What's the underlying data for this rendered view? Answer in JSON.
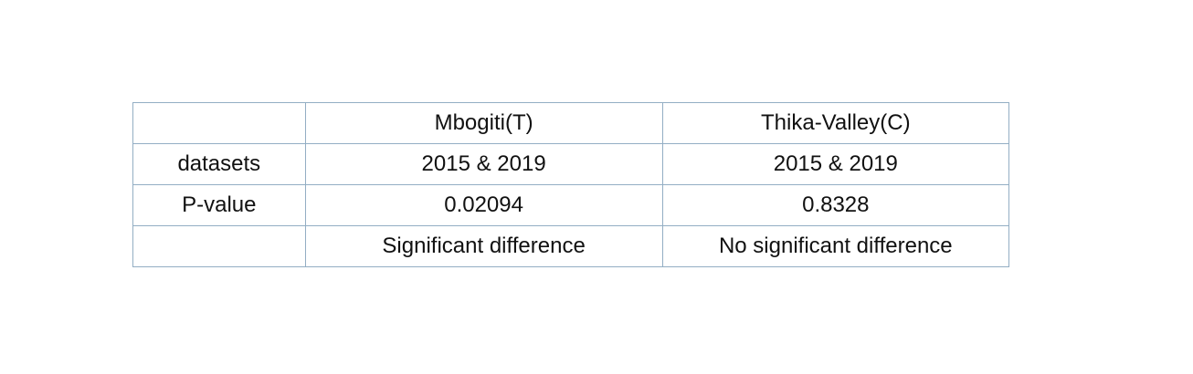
{
  "table": {
    "header": [
      "",
      "Mbogiti(T)",
      "Thika-Valley(C)"
    ],
    "rows": [
      [
        "datasets",
        "2015 & 2019",
        "2015 & 2019"
      ],
      [
        "P-value",
        "0.02094",
        "0.8328"
      ],
      [
        "",
        "Significant difference",
        "No significant difference"
      ]
    ]
  },
  "colors": {
    "border": "#93aec4",
    "text": "#111111",
    "background": "#ffffff"
  }
}
